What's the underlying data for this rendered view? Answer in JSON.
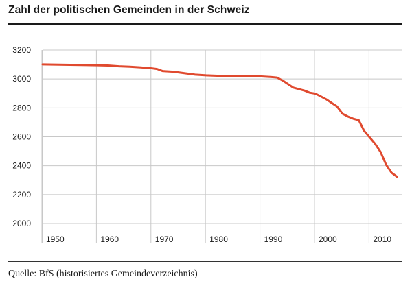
{
  "header": {
    "title": "Zahl der politischen Gemeinden in der Schweiz"
  },
  "footer": {
    "source": "Quelle: BfS (historisiertes Gemeindeverzeichnis)"
  },
  "colors": {
    "line": "#e04a2f",
    "grid": "#c8c8c8",
    "axis": "#1a1a1a"
  },
  "chart_data": {
    "type": "line",
    "title": "Zahl der politischen Gemeinden in der Schweiz",
    "xlabel": "",
    "ylabel": "",
    "xlim": [
      1950,
      2016
    ],
    "ylim": [
      2000,
      3200
    ],
    "yticks": [
      2000,
      2200,
      2400,
      2600,
      2800,
      3000,
      3200
    ],
    "xticks": [
      1950,
      1960,
      1970,
      1980,
      1990,
      2000,
      2010
    ],
    "grid": "horizontal and vertical",
    "legend": "none",
    "series": [
      {
        "x": [
          1950,
          1955,
          1960,
          1962,
          1964,
          1966,
          1968,
          1970,
          1971,
          1972,
          1974,
          1976,
          1978,
          1980,
          1982,
          1984,
          1986,
          1988,
          1990,
          1992,
          1993,
          1994,
          1996,
          1998,
          1999,
          2000,
          2001,
          2002,
          2003,
          2004,
          2005,
          2006,
          2007,
          2008,
          2009,
          2010,
          2011,
          2012,
          2013,
          2014,
          2015
        ],
        "y": [
          3101,
          3098,
          3095,
          3093,
          3088,
          3085,
          3080,
          3074,
          3069,
          3055,
          3050,
          3040,
          3030,
          3025,
          3022,
          3020,
          3020,
          3020,
          3018,
          3013,
          3010,
          2990,
          2940,
          2920,
          2905,
          2899,
          2880,
          2860,
          2835,
          2810,
          2760,
          2740,
          2725,
          2715,
          2640,
          2596,
          2551,
          2495,
          2408,
          2352,
          2324
        ]
      }
    ]
  }
}
